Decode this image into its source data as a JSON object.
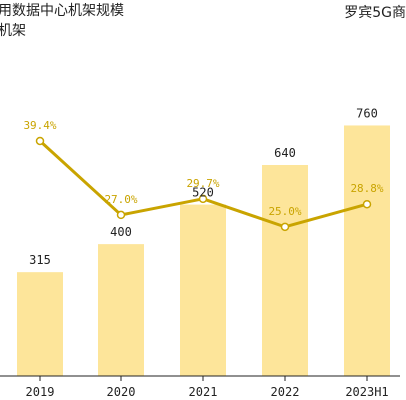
{
  "header": {
    "title_line1": "用数据中心机架规模",
    "title_line2": "机架",
    "source": "罗宾5G商"
  },
  "colors": {
    "bar": "#fde59a",
    "line": "#c9a400",
    "label": "#c9a400",
    "text": "#222222",
    "axis": "#222222"
  },
  "chart_data": {
    "type": "bar",
    "categories": [
      "2019",
      "2020",
      "2021",
      "2022",
      "2023H1"
    ],
    "series": [
      {
        "type": "bar",
        "values": [
          315,
          400,
          520,
          640,
          760
        ]
      },
      {
        "type": "line",
        "values": [
          39.4,
          27.0,
          29.7,
          25.0,
          28.8
        ]
      }
    ],
    "bar_labels": [
      "315",
      "400",
      "520",
      "640",
      "760"
    ],
    "line_labels": [
      "39.4%",
      "27.0%",
      "29.7%",
      "25.0%",
      "28.8%"
    ],
    "ylim_bar": [
      0,
      910
    ],
    "ylim_line": [
      0,
      58
    ]
  }
}
